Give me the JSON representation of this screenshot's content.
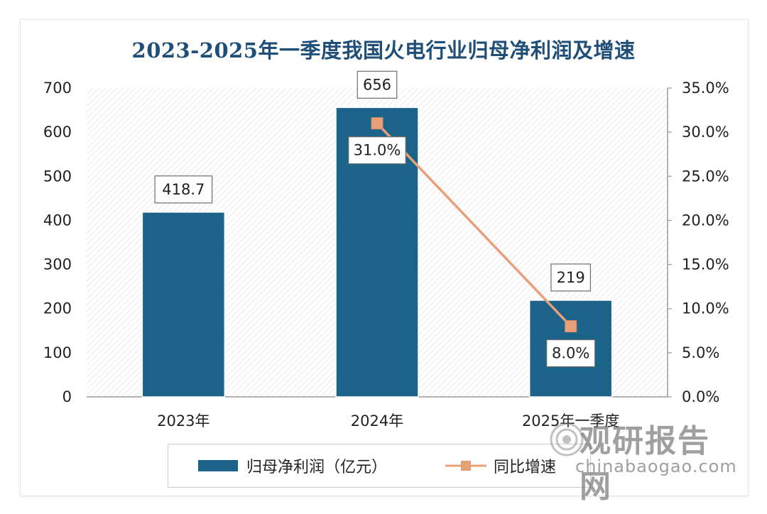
{
  "chart_data": {
    "type": "bar",
    "title": "2023-2025年一季度我国火电行业归母净利润及增速",
    "categories": [
      "2023年",
      "2024年",
      "2025年一季度"
    ],
    "series": [
      {
        "name": "归母净利润（亿元）",
        "type": "bar",
        "axis": "left",
        "values": [
          418.7,
          656,
          219
        ],
        "labels": [
          "418.7",
          "656",
          "219"
        ],
        "color": "#1c6389"
      },
      {
        "name": "同比增速",
        "type": "line",
        "axis": "right",
        "values": [
          null,
          31.0,
          8.0
        ],
        "labels": [
          "",
          "31.0%",
          "8.0%"
        ],
        "color": "#e8a07a"
      }
    ],
    "y_left": {
      "min": 0,
      "max": 700,
      "step": 100,
      "ticks": [
        "0",
        "100",
        "200",
        "300",
        "400",
        "500",
        "600",
        "700"
      ]
    },
    "y_right": {
      "min": 0,
      "max": 35,
      "step": 5,
      "ticks": [
        "0.0%",
        "5.0%",
        "10.0%",
        "15.0%",
        "20.0%",
        "25.0%",
        "30.0%",
        "35.0%"
      ]
    },
    "legend": {
      "position": "bottom"
    }
  },
  "watermark": {
    "title": "观研报告网",
    "url": "chinabaogao.com"
  }
}
